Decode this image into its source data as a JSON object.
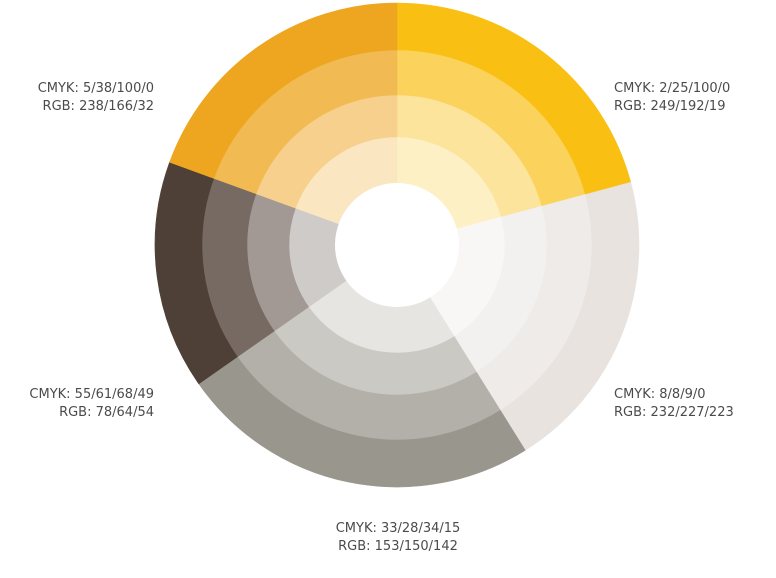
{
  "swatches": [
    {
      "key": "yellow",
      "cmyk": "CMYK: 2/25/100/0",
      "rgb": "RGB: 249/192/19",
      "base": "#f9c013",
      "start": 0,
      "end": 75,
      "rings": [
        "#fdf0c4",
        "#fce49c",
        "#fbd25c",
        "#f9c013"
      ]
    },
    {
      "key": "light",
      "cmyk": "CMYK: 8/8/9/0",
      "rgb": "RGB: 232/227/223",
      "base": "#e8e3df",
      "start": 75,
      "end": 148,
      "rings": [
        "#f8f7f6",
        "#f3f1ef",
        "#eeebe8",
        "#e8e3df"
      ]
    },
    {
      "key": "gray",
      "cmyk": "CMYK: 33/28/34/15",
      "rgb": "RGB: 153/150/142",
      "base": "#99968e",
      "start": 148,
      "end": 235,
      "rings": [
        "#e6e5e2",
        "#cbc9c4",
        "#b2b0a9",
        "#99968e"
      ]
    },
    {
      "key": "dark",
      "cmyk": "CMYK: 55/61/68/49",
      "rgb": "RGB: 78/64/54",
      "base": "#4e4036",
      "start": 235,
      "end": 290,
      "rings": [
        "#cfcbc8",
        "#a29995",
        "#766a62",
        "#4e4036"
      ]
    },
    {
      "key": "orange",
      "cmyk": "CMYK: 5/38/100/0",
      "rgb": "RGB: 238/166/32",
      "base": "#eea620",
      "start": 290,
      "end": 360,
      "rings": [
        "#fbe6c2",
        "#f6d08c",
        "#f1ba52",
        "#eea620"
      ]
    }
  ]
}
